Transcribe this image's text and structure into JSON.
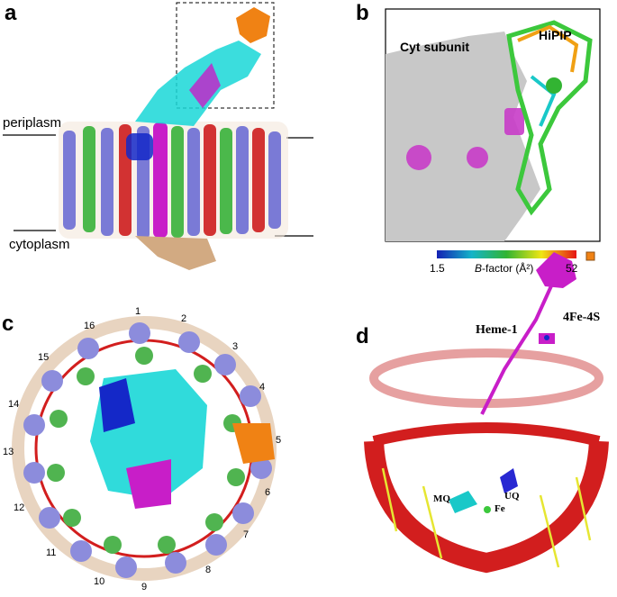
{
  "figure": {
    "panels": [
      {
        "letter": "a",
        "labels": {
          "top": "periplasm",
          "bottom": "cytoplasm"
        }
      },
      {
        "letter": "b",
        "labels": {
          "protein": "HiPIP",
          "surface": "Cyt subunit"
        },
        "colorbar": {
          "min": "1.5",
          "max": "52",
          "title_prefix": "B",
          "title_suffix": "-factor (Å²)"
        }
      },
      {
        "letter": "c",
        "ring_numbers": [
          "1",
          "2",
          "3",
          "4",
          "5",
          "6",
          "7",
          "8",
          "9",
          "10",
          "11",
          "12",
          "13",
          "14",
          "15",
          "16"
        ]
      },
      {
        "letter": "d",
        "labels": {
          "heme": "Heme-1",
          "cluster": "4Fe-4S",
          "mq": "MQ",
          "uq": "UQ",
          "fe": "Fe"
        }
      }
    ]
  },
  "colors": {
    "cyan": "#19d7d7",
    "magenta": "#c81ec8",
    "green": "#32b432",
    "lavender": "#6a6ad2",
    "red": "#d21e1e",
    "orange": "#f08214",
    "tan": "#d2aa82",
    "blue": "#1428c8",
    "yellow": "#e6e632",
    "gray": "#c8c8c8",
    "pink": "#e6a0a0"
  }
}
